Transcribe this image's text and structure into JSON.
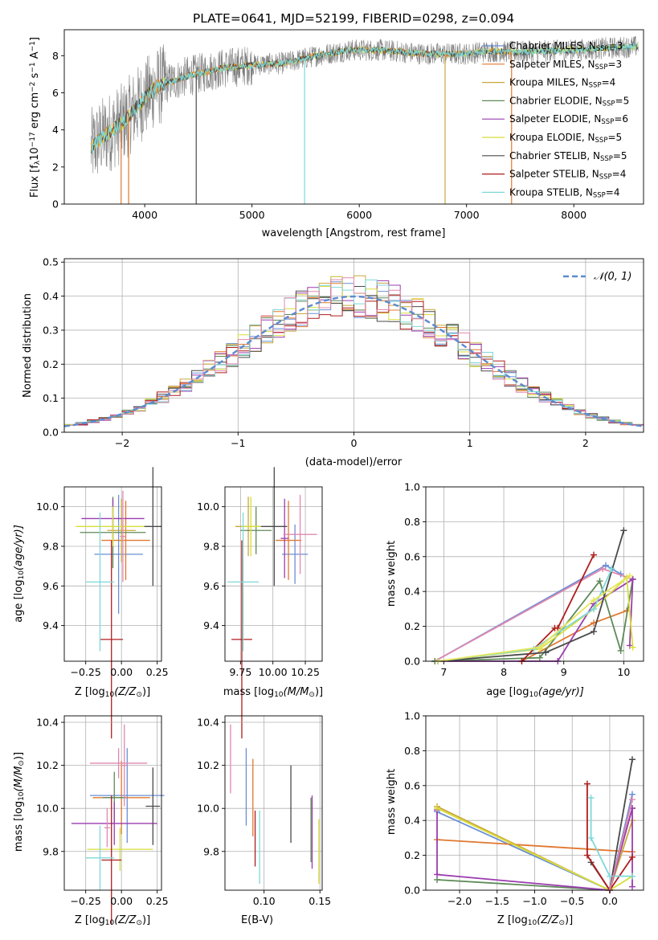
{
  "colors": {
    "Chabrier MILES": "#6a8fd6",
    "Salpeter MILES": "#e0782f",
    "Kroupa MILES": "#c8a83c",
    "Chabrier ELODIE": "#5e8a58",
    "Salpeter ELODIE": "#9c3cb0",
    "Kroupa ELODIE": "#d8de3a",
    "Chabrier STELIB": "#4a4a4a",
    "Salpeter STELIB": "#b01c1c",
    "Kroupa STELIB": "#7fd8d8",
    "extra_pink": "#e088b0",
    "extra_yellow": "#e6e65a",
    "data_spectrum": "#7f7f7f"
  },
  "chart_data": [
    {
      "id": "spectrum",
      "type": "line",
      "title": "PLATE=0641, MJD=52199, FIBERID=0298, z=0.094",
      "xlabel": "wavelength [Angstrom, rest frame]",
      "ylabel_main": "Flux [f",
      "ylabel_sub": "λ",
      "ylabel_rest": "10",
      "ylabel_exp": "−17",
      "ylabel_tail": " erg cm",
      "ylabel_exp2": "−2",
      "ylabel_tail2": " s",
      "ylabel_exp3": "−1",
      "ylabel_tail3": " A",
      "ylabel_exp4": "−1",
      "ylabel_end": "]",
      "xlim": [
        3250,
        8650
      ],
      "ylim": [
        0,
        9.4
      ],
      "xticks": [
        4000,
        5000,
        6000,
        7000,
        8000
      ],
      "yticks": [
        0,
        2,
        4,
        6,
        8
      ],
      "legend_position": "upper-right",
      "legend": [
        {
          "name": "Chabrier MILES, N",
          "sub": "SSP",
          "tail": "=3",
          "color_key": "Chabrier MILES"
        },
        {
          "name": "Salpeter MILES, N",
          "sub": "SSP",
          "tail": "=3",
          "color_key": "Salpeter MILES"
        },
        {
          "name": "Kroupa MILES, N",
          "sub": "SSP",
          "tail": "=4",
          "color_key": "Kroupa MILES"
        },
        {
          "name": "Chabrier ELODIE, N",
          "sub": "SSP",
          "tail": "=5",
          "color_key": "Chabrier ELODIE"
        },
        {
          "name": "Salpeter ELODIE, N",
          "sub": "SSP",
          "tail": "=6",
          "color_key": "Salpeter ELODIE"
        },
        {
          "name": "Kroupa ELODIE, N",
          "sub": "SSP",
          "tail": "=5",
          "color_key": "Kroupa ELODIE"
        },
        {
          "name": "Chabrier STELIB, N",
          "sub": "SSP",
          "tail": "=5",
          "color_key": "Chabrier STELIB"
        },
        {
          "name": "Salpeter STELIB, N",
          "sub": "SSP",
          "tail": "=4",
          "color_key": "Salpeter STELIB"
        },
        {
          "name": "Kroupa STELIB, N",
          "sub": "SSP",
          "tail": "=4",
          "color_key": "Kroupa STELIB"
        }
      ],
      "continuum_knots": [
        [
          3500,
          3.0
        ],
        [
          3600,
          3.6
        ],
        [
          3800,
          4.4
        ],
        [
          3950,
          5.4
        ],
        [
          4100,
          6.3
        ],
        [
          4400,
          6.9
        ],
        [
          4700,
          7.3
        ],
        [
          5000,
          7.5
        ],
        [
          5300,
          7.6
        ],
        [
          5600,
          8.0
        ],
        [
          5900,
          8.3
        ],
        [
          6200,
          8.3
        ],
        [
          6600,
          8.1
        ],
        [
          7000,
          8.1
        ],
        [
          7200,
          8.25
        ],
        [
          7450,
          8.2
        ],
        [
          8000,
          8.3
        ],
        [
          8600,
          8.5
        ]
      ]
    },
    {
      "id": "residuals",
      "type": "bar",
      "xlabel": "(data-model)/error",
      "ylabel": "Normed distribution",
      "xlim": [
        -2.5,
        2.5
      ],
      "ylim": [
        0,
        0.51
      ],
      "xticks": [
        -2,
        -1,
        0,
        1,
        2
      ],
      "xtick_labels": [
        "−2",
        "−1",
        "0",
        "1",
        "2"
      ],
      "yticks": [
        0.0,
        0.1,
        0.2,
        0.3,
        0.4,
        0.5
      ],
      "ytick_labels": [
        "0.0",
        "0.1",
        "0.2",
        "0.3",
        "0.4",
        "0.5"
      ],
      "bin_width": 0.1,
      "gaussian_label": "𝒩(0, 1)",
      "legend_position": "upper-right"
    },
    {
      "id": "age-vs-Z",
      "type": "scatter",
      "xlabel": "Z [log",
      "xlabel_sub": "10",
      "xlabel_tail": "(Z/Z",
      "xlabel_sub2": "⊙",
      "xlabel_end": ")]",
      "ylabel": "age  [log",
      "ylabel_sub": "10",
      "ylabel_tail": "(age/yr)]",
      "xlim": [
        -0.4,
        0.28
      ],
      "ylim": [
        9.22,
        10.1
      ],
      "xticks": [
        -0.25,
        0.0,
        0.25
      ],
      "xtick_labels": [
        "−0.25",
        "0.00",
        "0.25"
      ],
      "yticks": [
        9.4,
        9.6,
        9.8,
        10.0
      ],
      "ytick_labels": [
        "9.4",
        "9.6",
        "9.8",
        "10.0"
      ],
      "points": [
        {
          "x": -0.02,
          "y": 9.76,
          "xerr": 0.17,
          "yerr": 0.3,
          "c": "Chabrier MILES"
        },
        {
          "x": 0.03,
          "y": 9.83,
          "xerr": 0.17,
          "yerr": 0.2,
          "c": "Salpeter MILES"
        },
        {
          "x": 0.0,
          "y": 9.88,
          "xerr": 0.1,
          "yerr": 0.16,
          "c": "Kroupa MILES"
        },
        {
          "x": -0.06,
          "y": 9.87,
          "xerr": 0.23,
          "yerr": 0.18,
          "c": "Chabrier ELODIE"
        },
        {
          "x": -0.06,
          "y": 9.94,
          "xerr": 0.22,
          "yerr": 0.1,
          "c": "Salpeter ELODIE"
        },
        {
          "x": -0.06,
          "y": 9.9,
          "xerr": 0.26,
          "yerr": 0.1,
          "c": "Kroupa ELODIE"
        },
        {
          "x": 0.22,
          "y": 9.9,
          "xerr": 0.06,
          "yerr": 0.3,
          "c": "Chabrier STELIB"
        },
        {
          "x": -0.07,
          "y": 9.33,
          "xerr": 0.08,
          "yerr": 0.5,
          "c": "Salpeter STELIB"
        },
        {
          "x": -0.15,
          "y": 9.62,
          "xerr": 0.1,
          "yerr": 0.35,
          "c": "Kroupa STELIB"
        },
        {
          "x": 0.01,
          "y": 9.85,
          "xerr": 0.02,
          "yerr": 0.23,
          "c": "extra_pink"
        }
      ]
    },
    {
      "id": "age-vs-mass",
      "type": "scatter",
      "xlabel": "mass [log",
      "xlabel_sub": "10",
      "xlabel_tail": "(M/M",
      "xlabel_sub2": "⊙",
      "xlabel_end": ")]",
      "xlim": [
        9.63,
        10.38
      ],
      "ylim": [
        9.22,
        10.1
      ],
      "xticks": [
        9.75,
        10.0,
        10.25
      ],
      "xtick_labels": [
        "9.75",
        "10.00",
        "10.25"
      ],
      "yticks": [
        9.4,
        9.6,
        9.8,
        10.0
      ],
      "ytick_labels": [
        "9.4",
        "9.6",
        "9.8",
        "10.0"
      ],
      "points": [
        {
          "x": 10.17,
          "y": 9.76,
          "xerr": 0.1,
          "yerr": 0.15,
          "c": "Chabrier MILES"
        },
        {
          "x": 10.12,
          "y": 9.83,
          "xerr": 0.1,
          "yerr": 0.2,
          "c": "Salpeter MILES"
        },
        {
          "x": 9.81,
          "y": 9.9,
          "xerr": 0.1,
          "yerr": 0.15,
          "c": "Kroupa MILES"
        },
        {
          "x": 9.87,
          "y": 9.88,
          "xerr": 0.12,
          "yerr": 0.12,
          "c": "Chabrier ELODIE"
        },
        {
          "x": 10.09,
          "y": 9.84,
          "xerr": 0.03,
          "yerr": 0.2,
          "c": "Salpeter ELODIE"
        },
        {
          "x": 9.83,
          "y": 9.9,
          "xerr": 0.07,
          "yerr": 0.15,
          "c": "Kroupa ELODIE"
        },
        {
          "x": 10.01,
          "y": 9.9,
          "xerr": 0.1,
          "yerr": 0.3,
          "c": "Chabrier STELIB"
        },
        {
          "x": 9.76,
          "y": 9.33,
          "xerr": 0.08,
          "yerr": 0.5,
          "c": "Salpeter STELIB"
        },
        {
          "x": 9.77,
          "y": 9.62,
          "xerr": 0.12,
          "yerr": 0.35,
          "c": "Kroupa STELIB"
        },
        {
          "x": 10.21,
          "y": 9.86,
          "xerr": 0.13,
          "yerr": 0.2,
          "c": "extra_pink"
        }
      ]
    },
    {
      "id": "massweight-vs-age",
      "type": "line",
      "xlabel": "age  [log",
      "xlabel_sub": "10",
      "xlabel_tail": "(age/yr)]",
      "ylabel": "mass weight",
      "xlim": [
        6.7,
        10.33
      ],
      "ylim": [
        0,
        1.0
      ],
      "xticks": [
        7,
        8,
        9,
        10
      ],
      "xtick_labels": [
        "7",
        "8",
        "9",
        "10"
      ],
      "yticks": [
        0.0,
        0.2,
        0.4,
        0.6,
        0.8,
        1.0
      ],
      "ytick_labels": [
        "0.0",
        "0.2",
        "0.4",
        "0.6",
        "0.8",
        "1.0"
      ],
      "series": [
        {
          "c": "Chabrier MILES",
          "x": [
            6.85,
            9.7,
            9.95
          ],
          "y": [
            0.0,
            0.55,
            0.5
          ]
        },
        {
          "c": "Salpeter MILES",
          "x": [
            8.3,
            9.5,
            10.05
          ],
          "y": [
            0.0,
            0.22,
            0.29
          ]
        },
        {
          "c": "extra_pink",
          "x": [
            6.85,
            9.65,
            10.15
          ],
          "y": [
            0.0,
            0.53,
            0.47
          ]
        },
        {
          "c": "Chabrier ELODIE",
          "x": [
            6.85,
            8.6,
            9.6,
            9.95,
            10.15
          ],
          "y": [
            0.0,
            0.02,
            0.46,
            0.06,
            0.47
          ]
        },
        {
          "c": "Salpeter ELODIE",
          "x": [
            6.9,
            8.9,
            9.5,
            10.15,
            10.1
          ],
          "y": [
            0.0,
            0.0,
            0.33,
            0.47,
            0.09
          ]
        },
        {
          "c": "Kroupa ELODIE",
          "x": [
            6.9,
            8.6,
            9.5,
            10.05,
            10.15
          ],
          "y": [
            0.0,
            0.07,
            0.3,
            0.48,
            0.08
          ]
        },
        {
          "c": "Chabrier STELIB",
          "x": [
            6.9,
            8.7,
            9.5,
            10.0
          ],
          "y": [
            0.0,
            0.05,
            0.17,
            0.75
          ]
        },
        {
          "c": "Salpeter STELIB",
          "x": [
            8.3,
            8.85,
            8.9,
            9.5
          ],
          "y": [
            0.0,
            0.19,
            0.19,
            0.61
          ]
        },
        {
          "c": "Kroupa STELIB",
          "x": [
            6.9,
            8.5,
            9.5,
            9.8
          ],
          "y": [
            0.0,
            0.07,
            0.3,
            0.53
          ]
        },
        {
          "c": "extra_yellow",
          "x": [
            6.9,
            8.6,
            9.5,
            10.1
          ],
          "y": [
            0.0,
            0.08,
            0.35,
            0.49
          ]
        }
      ]
    },
    {
      "id": "mass-vs-Z",
      "type": "scatter",
      "xlabel": "Z [log",
      "xlabel_sub": "10",
      "xlabel_tail": "(Z/Z",
      "xlabel_sub2": "⊙",
      "xlabel_end": ")]",
      "ylabel": "mass [log",
      "ylabel_sub": "10",
      "ylabel_tail": "(M/M",
      "ylabel_sub2": "⊙",
      "ylabel_end": ")]",
      "xlim": [
        -0.4,
        0.28
      ],
      "ylim": [
        9.62,
        10.43
      ],
      "xticks": [
        -0.25,
        0.0,
        0.25
      ],
      "xtick_labels": [
        "−0.25",
        "0.00",
        "0.25"
      ],
      "yticks": [
        9.8,
        10.0,
        10.2,
        10.4
      ],
      "ytick_labels": [
        "9.8",
        "10.0",
        "10.2",
        "10.4"
      ],
      "points": [
        {
          "x": 0.04,
          "y": 10.06,
          "xerr": 0.26,
          "yerr": 0.22,
          "c": "Chabrier MILES"
        },
        {
          "x": 0.0,
          "y": 10.05,
          "xerr": 0.2,
          "yerr": 0.17,
          "c": "Salpeter MILES"
        },
        {
          "x": -0.05,
          "y": 10.05,
          "xerr": 0.08,
          "yerr": 0.12,
          "c": "Chabrier ELODIE"
        },
        {
          "x": -0.05,
          "y": 9.93,
          "xerr": 0.3,
          "yerr": 0.1,
          "c": "Salpeter ELODIE"
        },
        {
          "x": -0.01,
          "y": 9.81,
          "xerr": 0.23,
          "yerr": 0.1,
          "c": "Kroupa ELODIE"
        },
        {
          "x": 0.22,
          "y": 10.01,
          "xerr": 0.05,
          "yerr": 0.18,
          "c": "Chabrier STELIB"
        },
        {
          "x": -0.07,
          "y": 9.76,
          "xerr": 0.07,
          "yerr": 0.3,
          "c": "Salpeter STELIB"
        },
        {
          "x": -0.15,
          "y": 9.77,
          "xerr": 0.1,
          "yerr": 0.15,
          "c": "Kroupa STELIB"
        },
        {
          "x": -0.02,
          "y": 10.21,
          "xerr": 0.2,
          "yerr": 0.07,
          "c": "extra_pink"
        },
        {
          "x": 0.02,
          "y": 10.2,
          "xerr": 0.02,
          "yerr": 0.19,
          "c": "extra_pink"
        },
        {
          "x": -0.1,
          "y": 9.91,
          "xerr": 0.02,
          "yerr": 0.09,
          "c": "extra_pink"
        }
      ]
    },
    {
      "id": "mass-vs-ebv",
      "type": "scatter",
      "xlabel": "E(B-V)",
      "xlim": [
        0.065,
        0.152
      ],
      "ylim": [
        9.62,
        10.43
      ],
      "xticks": [
        0.1,
        0.15
      ],
      "xtick_labels": [
        "0.10",
        "0.15"
      ],
      "yticks": [
        9.8,
        10.0,
        10.2,
        10.4
      ],
      "ytick_labels": [
        "9.8",
        "10.0",
        "10.2",
        "10.4"
      ],
      "points": [
        {
          "x": 0.084,
          "y": 10.1,
          "yerr": 0.18,
          "c": "Chabrier MILES"
        },
        {
          "x": 0.09,
          "y": 10.05,
          "yerr": 0.18,
          "c": "Salpeter MILES"
        },
        {
          "x": 0.092,
          "y": 9.86,
          "yerr": 0.13,
          "c": "Salpeter STELIB"
        },
        {
          "x": 0.096,
          "y": 9.82,
          "yerr": 0.17,
          "c": "Kroupa STELIB"
        },
        {
          "x": 0.124,
          "y": 10.02,
          "yerr": 0.18,
          "c": "Chabrier STELIB"
        },
        {
          "x": 0.143,
          "y": 9.89,
          "yerr": 0.17,
          "c": "Salpeter ELODIE"
        },
        {
          "x": 0.142,
          "y": 9.9,
          "yerr": 0.15,
          "c": "Chabrier ELODIE"
        },
        {
          "x": 0.149,
          "y": 9.8,
          "yerr": 0.15,
          "c": "Kroupa ELODIE"
        },
        {
          "x": 0.07,
          "y": 10.23,
          "yerr": 0.16,
          "c": "extra_pink"
        }
      ]
    },
    {
      "id": "massweight-vs-Z",
      "type": "line",
      "xlabel": "Z [log",
      "xlabel_sub": "10",
      "xlabel_tail": "(Z/Z",
      "xlabel_sub2": "⊙",
      "xlabel_end": ")]",
      "ylabel": "mass weight",
      "xlim": [
        -2.45,
        0.45
      ],
      "ylim": [
        0,
        1.0
      ],
      "xticks": [
        -2.0,
        -1.5,
        -1.0,
        -0.5,
        0.0
      ],
      "xtick_labels": [
        "−2.0",
        "−1.5",
        "−1.0",
        "−0.5",
        "0.0"
      ],
      "yticks": [
        0.0,
        0.2,
        0.4,
        0.6,
        0.8,
        1.0
      ],
      "ytick_labels": [
        "0.0",
        "0.2",
        "0.4",
        "0.6",
        "0.8",
        "1.0"
      ],
      "series": [
        {
          "c": "Chabrier MILES",
          "x": [
            -2.3,
            0.0,
            0.3
          ],
          "y": [
            0.45,
            0.0,
            0.55
          ]
        },
        {
          "c": "Salpeter MILES",
          "x": [
            -2.3,
            0.3
          ],
          "y": [
            0.29,
            0.22
          ]
        },
        {
          "c": "Kroupa MILES",
          "x": [
            -2.3,
            0.0,
            0.3
          ],
          "y": [
            0.48,
            0.0,
            0.4
          ]
        },
        {
          "c": "Chabrier ELODIE",
          "x": [
            -2.3,
            0.0,
            0.3
          ],
          "y": [
            0.06,
            0.0,
            0.47
          ]
        },
        {
          "c": "Salpeter ELODIE",
          "x": [
            -2.3,
            -2.3,
            0.0,
            0.3,
            0.3
          ],
          "y": [
            0.46,
            0.09,
            0.0,
            0.47,
            0.02
          ]
        },
        {
          "c": "Kroupa ELODIE",
          "x": [
            -2.3,
            0.0,
            0.3
          ],
          "y": [
            0.47,
            0.0,
            0.08
          ]
        },
        {
          "c": "Chabrier STELIB",
          "x": [
            -0.25,
            0.0,
            0.3
          ],
          "y": [
            0.16,
            0.0,
            0.75
          ]
        },
        {
          "c": "Salpeter STELIB",
          "x": [
            -0.3,
            -0.3,
            0.0,
            0.3
          ],
          "y": [
            0.61,
            0.2,
            0.0,
            0.19
          ]
        },
        {
          "c": "Kroupa STELIB",
          "x": [
            -0.25,
            -0.25,
            0.0,
            0.3
          ],
          "y": [
            0.53,
            0.3,
            0.08,
            0.08
          ]
        },
        {
          "c": "extra_pink",
          "x": [
            0.0,
            0.3
          ],
          "y": [
            0.0,
            0.52
          ]
        }
      ]
    }
  ]
}
